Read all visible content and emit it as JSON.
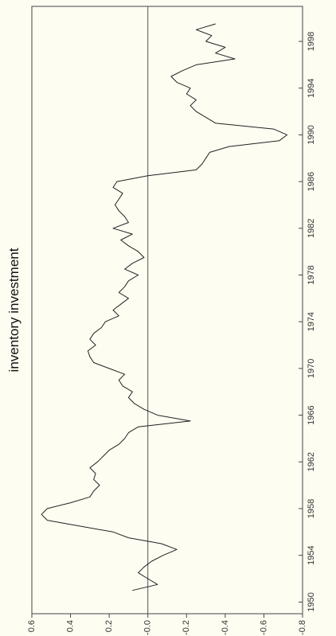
{
  "chart_data": {
    "type": "line",
    "orientation": "rotated-90-ccw",
    "title": "inventory investment",
    "xlabel": "",
    "ylabel": "",
    "xlim": [
      1949,
      2001
    ],
    "ylim": [
      -0.8,
      0.6
    ],
    "x_ticks": [
      "1950",
      "1954",
      "1958",
      "1962",
      "1966",
      "1970",
      "1974",
      "1978",
      "1982",
      "1986",
      "1990",
      "1994",
      "1998"
    ],
    "y_ticks": [
      "0.6",
      "0.4",
      "0.2",
      "-0.0",
      "-0.2",
      "-0.4",
      "-0.6",
      "-0.8"
    ],
    "zero_line": 0,
    "grid": false,
    "series": [
      {
        "color": "#222222",
        "x": [
          1951.0,
          1951.5,
          1952.0,
          1952.5,
          1953.0,
          1953.5,
          1954.0,
          1954.5,
          1955.0,
          1955.5,
          1956.0,
          1956.5,
          1957.0,
          1957.5,
          1958.0,
          1958.5,
          1959.0,
          1959.5,
          1960.0,
          1960.5,
          1961.0,
          1961.5,
          1962.0,
          1962.5,
          1963.0,
          1963.5,
          1964.0,
          1964.5,
          1965.0,
          1965.5,
          1966.0,
          1966.5,
          1967.0,
          1967.5,
          1968.0,
          1968.5,
          1969.0,
          1969.5,
          1970.0,
          1970.5,
          1971.0,
          1971.5,
          1972.0,
          1972.5,
          1973.0,
          1973.5,
          1974.0,
          1974.5,
          1975.0,
          1975.5,
          1976.0,
          1976.5,
          1977.0,
          1977.5,
          1978.0,
          1978.5,
          1979.0,
          1979.5,
          1980.0,
          1980.5,
          1981.0,
          1981.5,
          1982.0,
          1982.5,
          1983.0,
          1983.5,
          1984.0,
          1984.5,
          1985.0,
          1985.5,
          1986.0,
          1986.5,
          1987.0,
          1987.5,
          1988.0,
          1988.5,
          1989.0,
          1989.5,
          1990.0,
          1990.5,
          1991.0,
          1991.5,
          1992.0,
          1992.5,
          1993.0,
          1993.5,
          1994.0,
          1994.5,
          1995.0,
          1995.5,
          1996.0,
          1996.5,
          1997.0,
          1997.5,
          1998.0,
          1998.5,
          1999.0,
          1999.5
        ],
        "y": [
          0.08,
          -0.05,
          0.0,
          0.05,
          0.02,
          -0.02,
          -0.08,
          -0.15,
          -0.07,
          0.1,
          0.18,
          0.35,
          0.52,
          0.55,
          0.52,
          0.4,
          0.3,
          0.28,
          0.25,
          0.28,
          0.27,
          0.3,
          0.26,
          0.23,
          0.2,
          0.15,
          0.12,
          0.1,
          0.05,
          -0.22,
          -0.05,
          0.02,
          0.07,
          0.1,
          0.08,
          0.13,
          0.15,
          0.12,
          0.2,
          0.28,
          0.3,
          0.31,
          0.27,
          0.3,
          0.28,
          0.24,
          0.22,
          0.15,
          0.18,
          0.14,
          0.1,
          0.15,
          0.12,
          0.1,
          0.05,
          0.12,
          0.08,
          0.02,
          0.05,
          0.1,
          0.14,
          0.08,
          0.18,
          0.1,
          0.12,
          0.15,
          0.17,
          0.15,
          0.13,
          0.18,
          0.16,
          0.0,
          -0.25,
          -0.28,
          -0.3,
          -0.32,
          -0.42,
          -0.68,
          -0.72,
          -0.65,
          -0.35,
          -0.3,
          -0.25,
          -0.22,
          -0.25,
          -0.2,
          -0.22,
          -0.15,
          -0.12,
          -0.18,
          -0.25,
          -0.45,
          -0.35,
          -0.4,
          -0.3,
          -0.33,
          -0.25,
          -0.35
        ]
      }
    ]
  }
}
